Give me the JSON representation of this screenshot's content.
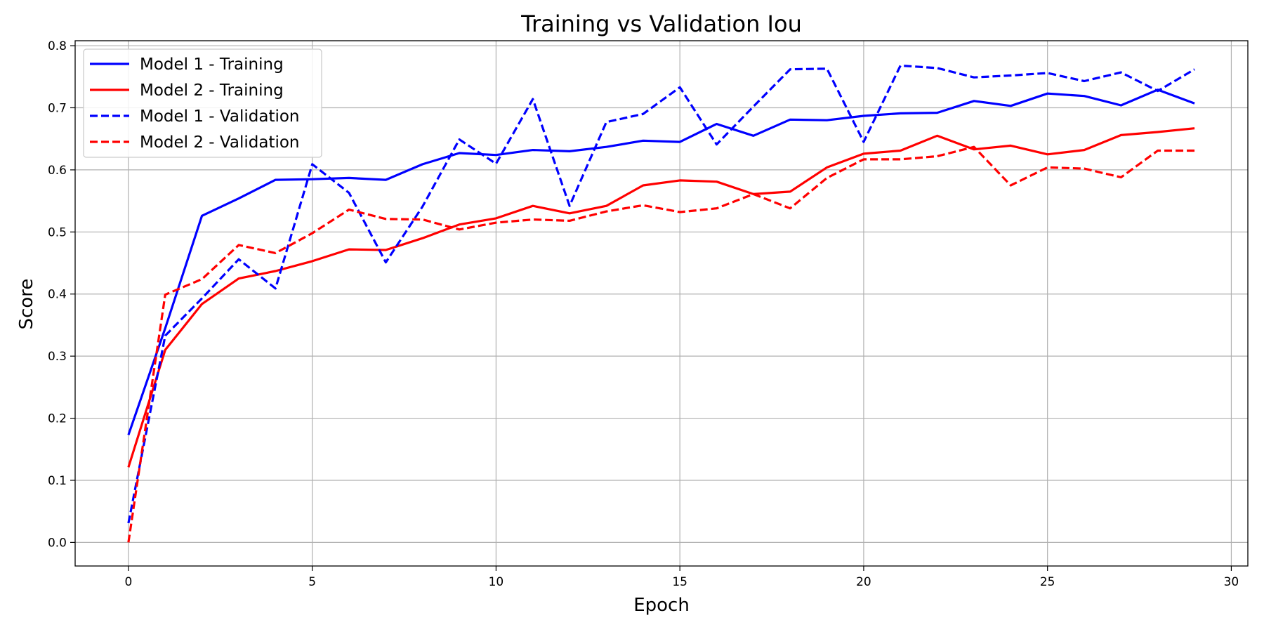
{
  "chart_data": {
    "type": "line",
    "title": "Training vs Validation Iou",
    "xlabel": "Epoch",
    "ylabel": "Score",
    "xlim": [
      -1.45,
      30.45
    ],
    "ylim": [
      -0.038,
      0.808
    ],
    "xticks": [
      0,
      5,
      10,
      15,
      20,
      25,
      30
    ],
    "yticks": [
      0.0,
      0.1,
      0.2,
      0.3,
      0.4,
      0.5,
      0.6,
      0.7,
      0.8
    ],
    "xtick_labels": [
      "0",
      "5",
      "10",
      "15",
      "20",
      "25",
      "30"
    ],
    "ytick_labels": [
      "0.0",
      "0.1",
      "0.2",
      "0.3",
      "0.4",
      "0.5",
      "0.6",
      "0.7",
      "0.8"
    ],
    "grid": true,
    "legend_position": "top-left",
    "x": [
      0,
      1,
      2,
      3,
      4,
      5,
      6,
      7,
      8,
      9,
      10,
      11,
      12,
      13,
      14,
      15,
      16,
      17,
      18,
      19,
      20,
      21,
      22,
      23,
      24,
      25,
      26,
      27,
      28,
      29
    ],
    "series": [
      {
        "name": "Model 1 - Training",
        "color": "#0000ff",
        "style": "solid",
        "values": [
          0.173,
          0.345,
          0.526,
          0.554,
          0.584,
          0.585,
          0.587,
          0.584,
          0.609,
          0.627,
          0.624,
          0.632,
          0.63,
          0.637,
          0.647,
          0.645,
          0.674,
          0.655,
          0.681,
          0.68,
          0.687,
          0.691,
          0.692,
          0.711,
          0.703,
          0.723,
          0.719,
          0.704,
          0.729,
          0.707
        ]
      },
      {
        "name": "Model 2 - Training",
        "color": "#ff0000",
        "style": "solid",
        "values": [
          0.121,
          0.31,
          0.384,
          0.425,
          0.437,
          0.453,
          0.472,
          0.471,
          0.49,
          0.512,
          0.522,
          0.542,
          0.53,
          0.542,
          0.575,
          0.583,
          0.581,
          0.561,
          0.565,
          0.604,
          0.626,
          0.631,
          0.655,
          0.633,
          0.639,
          0.625,
          0.632,
          0.656,
          0.661,
          0.667
        ]
      },
      {
        "name": "Model 1 - Validation",
        "color": "#0000ff",
        "style": "dashed",
        "values": [
          0.031,
          0.333,
          0.393,
          0.456,
          0.409,
          0.609,
          0.563,
          0.451,
          0.541,
          0.649,
          0.61,
          0.714,
          0.542,
          0.677,
          0.69,
          0.733,
          0.641,
          0.702,
          0.762,
          0.763,
          0.645,
          0.768,
          0.764,
          0.749,
          0.752,
          0.756,
          0.743,
          0.757,
          0.727,
          0.762
        ]
      },
      {
        "name": "Model 2 - Validation",
        "color": "#ff0000",
        "style": "dashed",
        "values": [
          0.0,
          0.399,
          0.424,
          0.479,
          0.466,
          0.498,
          0.536,
          0.521,
          0.52,
          0.504,
          0.515,
          0.52,
          0.518,
          0.533,
          0.543,
          0.532,
          0.538,
          0.561,
          0.538,
          0.587,
          0.617,
          0.617,
          0.622,
          0.637,
          0.575,
          0.604,
          0.602,
          0.588,
          0.631,
          0.631
        ]
      }
    ]
  }
}
